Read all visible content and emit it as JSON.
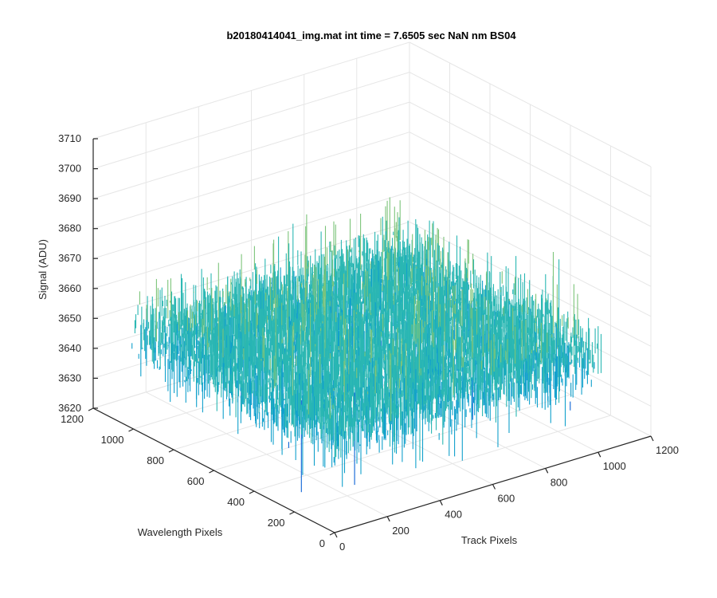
{
  "chart_data": {
    "type": "surface3d",
    "title": "b20180414041_img.mat int time = 7.6505 sec  NaN nm BS04",
    "xlabel": "Track Pixels",
    "ylabel": "Wavelength Pixels",
    "zlabel": "Signal (ADU)",
    "xlim": [
      0,
      1200
    ],
    "ylim": [
      0,
      1200
    ],
    "zlim": [
      3620,
      3710
    ],
    "x_ticks": [
      "0",
      "200",
      "400",
      "600",
      "800",
      "1000",
      "1200"
    ],
    "y_ticks": [
      "0",
      "200",
      "400",
      "600",
      "800",
      "1000",
      "1200"
    ],
    "z_ticks": [
      "3620",
      "3630",
      "3640",
      "3650",
      "3660",
      "3670",
      "3680",
      "3690",
      "3700",
      "3710"
    ],
    "data_extent": {
      "x": [
        0,
        1024
      ],
      "y": [
        0,
        1024
      ]
    },
    "signal_mean": 3652,
    "signal_range": [
      3622,
      3708
    ],
    "grid": true,
    "colormap": [
      "#0b62d6",
      "#10a0cc",
      "#2ab7b3",
      "#7cc47a",
      "#d7b440",
      "#f5d333"
    ]
  }
}
